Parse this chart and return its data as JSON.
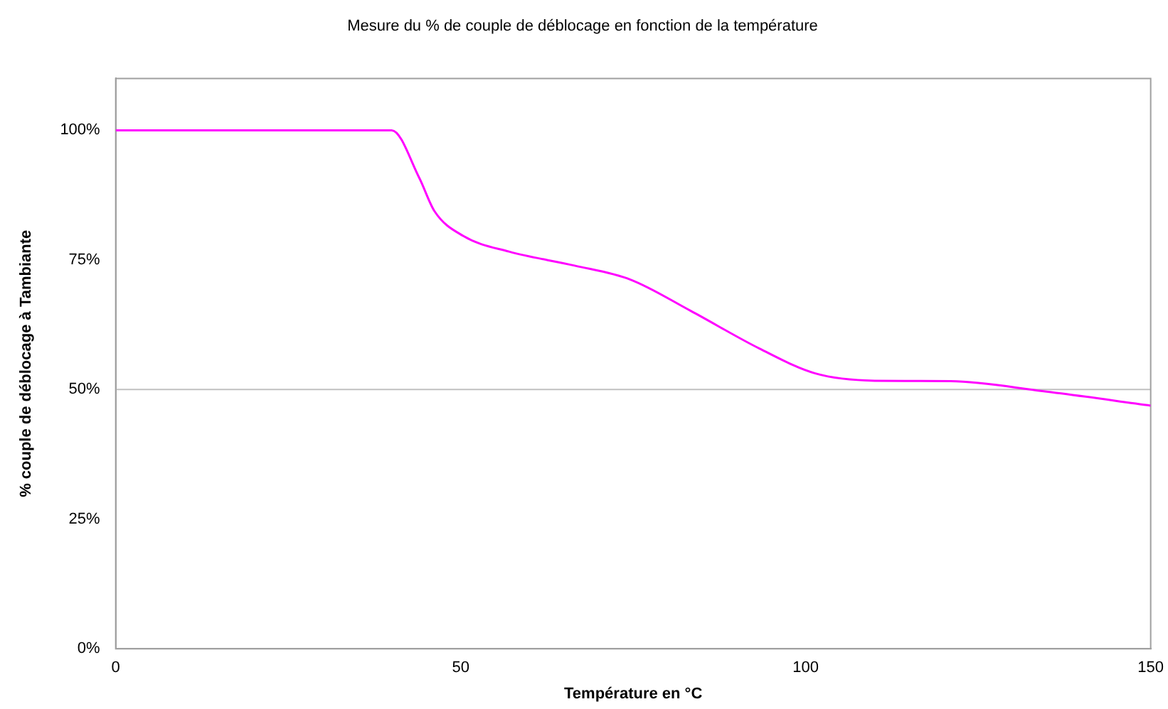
{
  "chart_data": {
    "type": "line",
    "title": "Mesure du % de couple de déblocage en fonction de la température",
    "xlabel": "Température en °C",
    "ylabel": "% couple de déblocage à Tambiante",
    "series": [
      {
        "color": "#ff00ff",
        "x": [
          0,
          40,
          44,
          46.2,
          50.4,
          57,
          66.5,
          74.6,
          83.3,
          93.3,
          101.4,
          110,
          121,
          134.3,
          150
        ],
        "values": [
          100,
          100,
          90.8,
          84.4,
          79.6,
          76.6,
          73.9,
          71.2,
          65.2,
          57.9,
          53.1,
          51.7,
          51.6,
          49.7,
          46.9
        ]
      }
    ],
    "xlim": [
      0,
      150
    ],
    "xticks": [
      0,
      50,
      100,
      150
    ],
    "ylim": [
      0,
      110
    ],
    "yticks": [
      {
        "value": 0,
        "label": "0%"
      },
      {
        "value": 25,
        "label": "25%"
      },
      {
        "value": 50,
        "label": "50%"
      },
      {
        "value": 75,
        "label": "75%"
      },
      {
        "value": 100,
        "label": "100%"
      }
    ],
    "ref_lines": [
      {
        "axis": "y",
        "value": 50,
        "label": null,
        "color": "#c0c0c0"
      }
    ],
    "grid": false,
    "legend": false,
    "marker": "none",
    "line_style": "solid"
  }
}
